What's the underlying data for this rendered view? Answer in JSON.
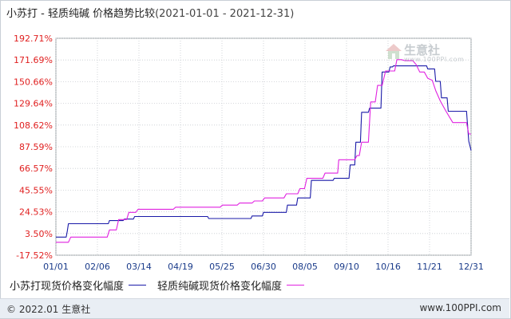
{
  "header": {
    "title": "小苏打 - 轻质纯碱 价格趋势比较",
    "date_range": "(2021-01-01 - 2021-12-31)"
  },
  "footer": {
    "copyright": "© 2022.01 生意社",
    "url": "www.100PPI.com"
  },
  "watermark": {
    "brand": "生意社",
    "url": "www.100PPI.com"
  },
  "chart_data": {
    "type": "line",
    "title": "小苏打 - 轻质纯碱 价格趋势比较",
    "xlabel": "",
    "ylabel": "",
    "x_ticks": [
      "01/01",
      "02/06",
      "03/14",
      "04/19",
      "05/25",
      "06/30",
      "08/05",
      "09/10",
      "10/16",
      "11/21",
      "12/31"
    ],
    "x_range": [
      "2021-01-01",
      "2021-12-31"
    ],
    "y_ticks": [
      "192.71%",
      "171.69%",
      "150.66%",
      "129.64%",
      "108.62%",
      "87.59%",
      "66.57%",
      "45.55%",
      "24.53%",
      "3.50%",
      "-17.52%"
    ],
    "y_tick_values": [
      192.71,
      171.69,
      150.66,
      129.64,
      108.62,
      87.59,
      66.57,
      45.55,
      24.53,
      3.5,
      -17.52
    ],
    "ylim": [
      -17.52,
      192.71
    ],
    "grid": true,
    "legend_position": "bottom",
    "series": [
      {
        "name": "小苏打现货价格变化幅度",
        "color": "#1a1aa8",
        "points": [
          [
            "2021-01-01",
            0
          ],
          [
            "2021-01-10",
            0
          ],
          [
            "2021-01-11",
            6
          ],
          [
            "2021-01-12",
            13
          ],
          [
            "2021-02-16",
            13
          ],
          [
            "2021-02-17",
            16
          ],
          [
            "2021-03-01",
            16
          ],
          [
            "2021-03-02",
            17.5
          ],
          [
            "2021-03-10",
            17.5
          ],
          [
            "2021-03-11",
            20
          ],
          [
            "2021-05-14",
            20
          ],
          [
            "2021-05-15",
            18
          ],
          [
            "2021-06-21",
            18
          ],
          [
            "2021-06-22",
            20.5
          ],
          [
            "2021-07-01",
            20.5
          ],
          [
            "2021-07-02",
            24
          ],
          [
            "2021-07-22",
            24
          ],
          [
            "2021-07-23",
            31
          ],
          [
            "2021-07-31",
            31
          ],
          [
            "2021-08-01",
            38
          ],
          [
            "2021-08-12",
            38
          ],
          [
            "2021-08-13",
            55
          ],
          [
            "2021-09-01",
            55
          ],
          [
            "2021-09-02",
            57
          ],
          [
            "2021-09-15",
            57
          ],
          [
            "2021-09-16",
            70
          ],
          [
            "2021-09-20",
            70
          ],
          [
            "2021-09-21",
            92
          ],
          [
            "2021-09-25",
            92
          ],
          [
            "2021-09-26",
            121
          ],
          [
            "2021-10-02",
            121
          ],
          [
            "2021-10-03",
            125
          ],
          [
            "2021-10-13",
            125
          ],
          [
            "2021-10-14",
            160
          ],
          [
            "2021-10-20",
            160
          ],
          [
            "2021-10-21",
            165
          ],
          [
            "2021-10-23",
            165
          ],
          [
            "2021-10-24",
            166
          ],
          [
            "2021-11-22",
            166
          ],
          [
            "2021-11-23",
            163
          ],
          [
            "2021-11-29",
            163
          ],
          [
            "2021-11-30",
            151
          ],
          [
            "2021-12-04",
            151
          ],
          [
            "2021-12-05",
            135
          ],
          [
            "2021-12-10",
            135
          ],
          [
            "2021-12-11",
            122
          ],
          [
            "2021-12-27",
            122
          ],
          [
            "2021-12-28",
            107
          ],
          [
            "2021-12-29",
            93
          ],
          [
            "2021-12-31",
            84
          ]
        ]
      },
      {
        "name": "轻质纯碱现货价格变化幅度",
        "color": "#e022e0",
        "points": [
          [
            "2021-01-01",
            -5
          ],
          [
            "2021-01-12",
            -5
          ],
          [
            "2021-01-14",
            0
          ],
          [
            "2021-02-15",
            0
          ],
          [
            "2021-02-17",
            7
          ],
          [
            "2021-02-23",
            7
          ],
          [
            "2021-02-25",
            17
          ],
          [
            "2021-03-04",
            17
          ],
          [
            "2021-03-06",
            24
          ],
          [
            "2021-03-12",
            24
          ],
          [
            "2021-03-14",
            27
          ],
          [
            "2021-04-14",
            27
          ],
          [
            "2021-04-16",
            29
          ],
          [
            "2021-05-25",
            29
          ],
          [
            "2021-05-27",
            31
          ],
          [
            "2021-06-09",
            31
          ],
          [
            "2021-06-11",
            33
          ],
          [
            "2021-06-22",
            33
          ],
          [
            "2021-06-24",
            35
          ],
          [
            "2021-07-01",
            35
          ],
          [
            "2021-07-03",
            38
          ],
          [
            "2021-07-20",
            38
          ],
          [
            "2021-07-22",
            42
          ],
          [
            "2021-08-01",
            42
          ],
          [
            "2021-08-03",
            47
          ],
          [
            "2021-08-07",
            47
          ],
          [
            "2021-08-09",
            57
          ],
          [
            "2021-08-23",
            57
          ],
          [
            "2021-08-25",
            62
          ],
          [
            "2021-09-05",
            62
          ],
          [
            "2021-09-06",
            75
          ],
          [
            "2021-09-20",
            75
          ],
          [
            "2021-09-22",
            79
          ],
          [
            "2021-09-24",
            79
          ],
          [
            "2021-09-26",
            92
          ],
          [
            "2021-10-02",
            92
          ],
          [
            "2021-10-04",
            131
          ],
          [
            "2021-10-08",
            131
          ],
          [
            "2021-10-10",
            147
          ],
          [
            "2021-10-14",
            147
          ],
          [
            "2021-10-17",
            161
          ],
          [
            "2021-10-25",
            161
          ],
          [
            "2021-10-27",
            172
          ],
          [
            "2021-10-31",
            172
          ],
          [
            "2021-11-03",
            171
          ],
          [
            "2021-11-10",
            171
          ],
          [
            "2021-11-13",
            167
          ],
          [
            "2021-11-16",
            160
          ],
          [
            "2021-11-20",
            160
          ],
          [
            "2021-11-23",
            154
          ],
          [
            "2021-11-27",
            152
          ],
          [
            "2021-11-30",
            142
          ],
          [
            "2021-12-04",
            132
          ],
          [
            "2021-12-09",
            122
          ],
          [
            "2021-12-15",
            111
          ],
          [
            "2021-12-27",
            111
          ],
          [
            "2021-12-29",
            100
          ],
          [
            "2021-12-31",
            100
          ]
        ]
      }
    ]
  }
}
